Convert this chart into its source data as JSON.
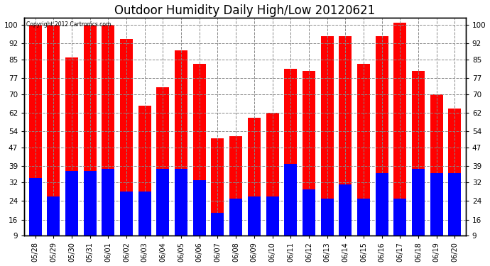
{
  "title": "Outdoor Humidity Daily High/Low 20120621",
  "copyright": "Copyright 2012 Cartronics.com",
  "dates": [
    "05/28",
    "05/29",
    "05/30",
    "05/31",
    "06/01",
    "06/02",
    "06/03",
    "06/04",
    "06/05",
    "06/06",
    "06/07",
    "06/08",
    "06/09",
    "06/10",
    "06/11",
    "06/12",
    "06/13",
    "06/14",
    "06/15",
    "06/16",
    "06/17",
    "06/18",
    "06/19",
    "06/20"
  ],
  "highs": [
    100,
    100,
    86,
    100,
    100,
    94,
    65,
    73,
    89,
    83,
    51,
    52,
    60,
    62,
    81,
    80,
    95,
    95,
    83,
    95,
    101,
    80,
    70,
    64
  ],
  "lows": [
    34,
    26,
    37,
    37,
    38,
    28,
    28,
    38,
    38,
    33,
    19,
    25,
    26,
    26,
    40,
    29,
    25,
    31,
    25,
    36,
    25,
    38,
    36,
    36
  ],
  "bar_color_high": "#ff0000",
  "bar_color_low": "#0000ff",
  "bg_color": "#ffffff",
  "grid_color": "#888888",
  "title_fontsize": 12,
  "yticks": [
    9,
    16,
    24,
    32,
    39,
    47,
    54,
    62,
    70,
    77,
    85,
    92,
    100
  ],
  "ymin": 9,
  "ymax": 103,
  "bar_width": 0.7
}
